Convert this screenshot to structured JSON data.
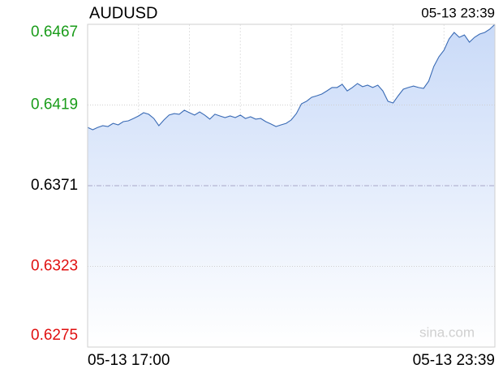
{
  "chart_data": {
    "type": "line",
    "title": "AUDUSD",
    "updated": "05-13 23:39",
    "watermark": "sina.com",
    "categories": [
      "05-13 17:00",
      null,
      null,
      null,
      null,
      null,
      null,
      null,
      null,
      null,
      null,
      null,
      null,
      null,
      null,
      null,
      null,
      null,
      null,
      null,
      null,
      null,
      null,
      null,
      null,
      null,
      null,
      null,
      null,
      null,
      null,
      null,
      null,
      null,
      null,
      null,
      null,
      null,
      null,
      null,
      null,
      null,
      null,
      null,
      null,
      null,
      null,
      null,
      null,
      null,
      null,
      null,
      null,
      null,
      null,
      null,
      null,
      null,
      null,
      null,
      null,
      null,
      null,
      null,
      null,
      null,
      null,
      null,
      null,
      null,
      null,
      null,
      null,
      null,
      null,
      null,
      null,
      null,
      null,
      null,
      "05-13 23:39"
    ],
    "series": [
      {
        "name": "AUDUSD",
        "color": "#3a6bb5",
        "values": [
          0.64057,
          0.64043,
          0.64057,
          0.64067,
          0.64062,
          0.64081,
          0.64072,
          0.64091,
          0.64096,
          0.6411,
          0.64125,
          0.64144,
          0.64135,
          0.6411,
          0.64067,
          0.64101,
          0.6413,
          0.64139,
          0.64135,
          0.64159,
          0.64144,
          0.6413,
          0.64149,
          0.6413,
          0.64106,
          0.64135,
          0.64125,
          0.64115,
          0.64125,
          0.64115,
          0.6413,
          0.6411,
          0.6412,
          0.64106,
          0.6411,
          0.64091,
          0.64077,
          0.64062,
          0.64072,
          0.64081,
          0.64101,
          0.64139,
          0.64197,
          0.64212,
          0.64236,
          0.64245,
          0.64255,
          0.64274,
          0.64294,
          0.64294,
          0.64313,
          0.64274,
          0.64294,
          0.64318,
          0.64299,
          0.64308,
          0.64294,
          0.64308,
          0.64274,
          0.64212,
          0.64202,
          0.64245,
          0.64284,
          0.64294,
          0.64303,
          0.64294,
          0.64289,
          0.64332,
          0.64419,
          0.64477,
          0.64516,
          0.64583,
          0.64622,
          0.64593,
          0.64607,
          0.64564,
          0.64593,
          0.64612,
          0.64622,
          0.64641,
          0.6467
        ]
      }
    ],
    "ylim": [
      0.6275,
      0.6467
    ],
    "yticks": [
      0.6467,
      0.6419,
      0.6371,
      0.6323,
      0.6275
    ],
    "ytick_colors": [
      "#1a9c1a",
      "#1a9c1a",
      "#000000",
      "#e01010",
      "#e01010"
    ],
    "area_color": "#c9daf8",
    "grid": true
  }
}
